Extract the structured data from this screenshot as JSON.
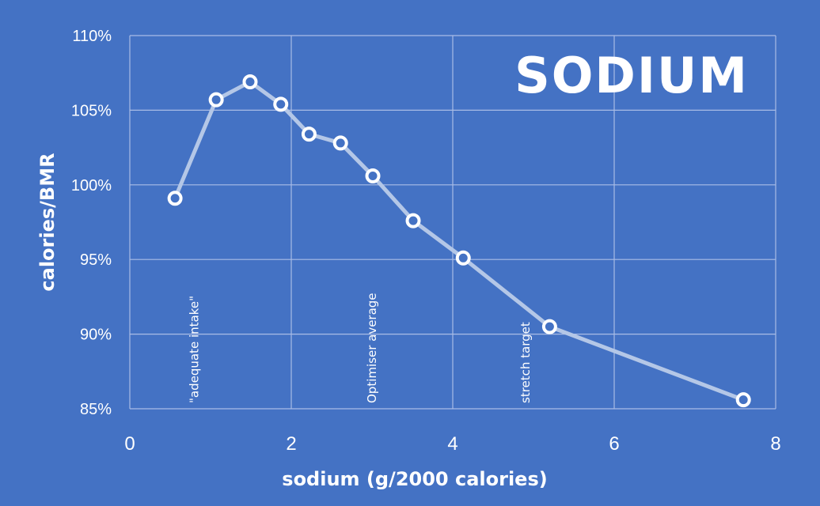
{
  "chart_data": {
    "type": "line",
    "title": "SODIUM",
    "xlabel": "sodium (g/2000 calories)",
    "ylabel": "calories/BMR",
    "xlim": [
      0,
      8
    ],
    "ylim": [
      0.85,
      1.1
    ],
    "x_ticks": [
      0,
      2,
      4,
      6,
      8
    ],
    "x_tick_labels": [
      "0",
      "2",
      "4",
      "6",
      "8"
    ],
    "y_ticks": [
      0.85,
      0.9,
      0.95,
      1.0,
      1.05,
      1.1
    ],
    "y_tick_labels": [
      "85%",
      "90%",
      "95%",
      "100%",
      "105%",
      "110%"
    ],
    "grid": true,
    "series": [
      {
        "x": [
          0.56,
          1.07,
          1.49,
          1.87,
          2.22,
          2.61,
          3.01,
          3.51,
          4.13,
          5.2,
          7.6
        ],
        "y": [
          0.991,
          1.057,
          1.069,
          1.054,
          1.034,
          1.028,
          1.006,
          0.976,
          0.951,
          0.905,
          0.856
        ]
      }
    ],
    "annotations": [
      {
        "text": "\"adequate intake\"",
        "x": 0.8
      },
      {
        "text": "Optimiser average",
        "x": 3.0
      },
      {
        "text": "stretch target",
        "x": 4.9
      }
    ],
    "colors": {
      "background": "#4472C4",
      "line": "#B4C7E7",
      "marker_fill": "#4472C4",
      "marker_stroke": "#FFFFFF",
      "grid": "#A9BCE6",
      "text": "#FFFFFF"
    }
  }
}
